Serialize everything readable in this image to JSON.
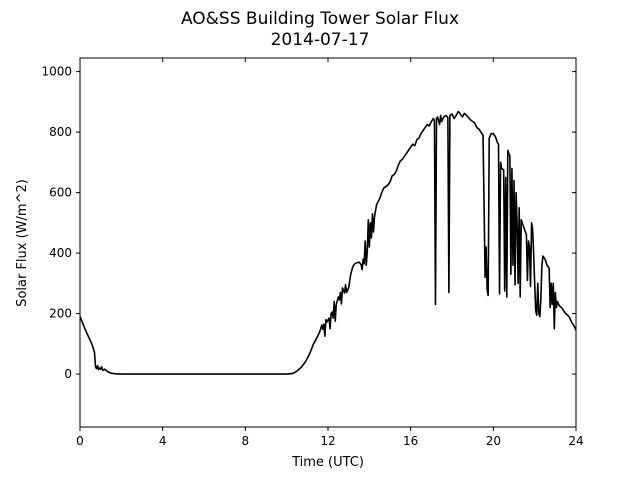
{
  "chart_data": {
    "type": "line",
    "title": "AO&SS Building Tower Solar Flux",
    "subtitle": "2014-07-17",
    "xlabel": "Time (UTC)",
    "ylabel": "Solar Flux (W/m^2)",
    "xlim": [
      0,
      24
    ],
    "ylim": [
      -175,
      1045
    ],
    "xticks": [
      0,
      4,
      8,
      12,
      16,
      20,
      24
    ],
    "yticks": [
      0,
      200,
      400,
      600,
      800,
      1000
    ],
    "grid": false,
    "legend": "none",
    "line_color": "#000000",
    "series": [
      {
        "points": [
          [
            0.0,
            190
          ],
          [
            0.15,
            165
          ],
          [
            0.3,
            140
          ],
          [
            0.45,
            118
          ],
          [
            0.6,
            95
          ],
          [
            0.7,
            72
          ],
          [
            0.75,
            25
          ],
          [
            0.8,
            18
          ],
          [
            0.85,
            28
          ],
          [
            0.9,
            15
          ],
          [
            0.95,
            20
          ],
          [
            1.0,
            16
          ],
          [
            1.05,
            24
          ],
          [
            1.1,
            12
          ],
          [
            1.2,
            16
          ],
          [
            1.3,
            10
          ],
          [
            1.4,
            6
          ],
          [
            1.5,
            3
          ],
          [
            1.7,
            1
          ],
          [
            2.0,
            0
          ],
          [
            3.0,
            0
          ],
          [
            4.0,
            0
          ],
          [
            6.0,
            0
          ],
          [
            8.0,
            0
          ],
          [
            10.0,
            0
          ],
          [
            10.3,
            2
          ],
          [
            10.5,
            10
          ],
          [
            10.7,
            22
          ],
          [
            10.9,
            40
          ],
          [
            11.1,
            65
          ],
          [
            11.3,
            100
          ],
          [
            11.5,
            125
          ],
          [
            11.6,
            140
          ],
          [
            11.7,
            162
          ],
          [
            11.75,
            148
          ],
          [
            11.8,
            165
          ],
          [
            11.85,
            125
          ],
          [
            11.9,
            180
          ],
          [
            11.95,
            172
          ],
          [
            12.05,
            185
          ],
          [
            12.1,
            150
          ],
          [
            12.15,
            200
          ],
          [
            12.2,
            205
          ],
          [
            12.25,
            185
          ],
          [
            12.3,
            240
          ],
          [
            12.35,
            175
          ],
          [
            12.4,
            230
          ],
          [
            12.5,
            255
          ],
          [
            12.55,
            245
          ],
          [
            12.6,
            270
          ],
          [
            12.65,
            232
          ],
          [
            12.7,
            285
          ],
          [
            12.8,
            268
          ],
          [
            12.85,
            295
          ],
          [
            12.9,
            270
          ],
          [
            13.0,
            285
          ],
          [
            13.1,
            330
          ],
          [
            13.2,
            355
          ],
          [
            13.3,
            365
          ],
          [
            13.4,
            368
          ],
          [
            13.5,
            370
          ],
          [
            13.6,
            362
          ],
          [
            13.65,
            345
          ],
          [
            13.7,
            380
          ],
          [
            13.75,
            365
          ],
          [
            13.8,
            440
          ],
          [
            13.85,
            360
          ],
          [
            13.9,
            405
          ],
          [
            13.95,
            510
          ],
          [
            14.0,
            420
          ],
          [
            14.05,
            500
          ],
          [
            14.1,
            450
          ],
          [
            14.15,
            530
          ],
          [
            14.2,
            470
          ],
          [
            14.25,
            520
          ],
          [
            14.35,
            560
          ],
          [
            14.5,
            580
          ],
          [
            14.6,
            600
          ],
          [
            14.7,
            615
          ],
          [
            14.8,
            620
          ],
          [
            14.9,
            625
          ],
          [
            15.0,
            635
          ],
          [
            15.1,
            655
          ],
          [
            15.2,
            660
          ],
          [
            15.3,
            670
          ],
          [
            15.4,
            690
          ],
          [
            15.5,
            705
          ],
          [
            15.6,
            710
          ],
          [
            15.7,
            720
          ],
          [
            15.8,
            730
          ],
          [
            15.9,
            740
          ],
          [
            16.0,
            750
          ],
          [
            16.1,
            760
          ],
          [
            16.2,
            755
          ],
          [
            16.3,
            775
          ],
          [
            16.4,
            780
          ],
          [
            16.5,
            795
          ],
          [
            16.6,
            805
          ],
          [
            16.7,
            815
          ],
          [
            16.8,
            825
          ],
          [
            16.9,
            820
          ],
          [
            17.0,
            835
          ],
          [
            17.1,
            845
          ],
          [
            17.15,
            838
          ],
          [
            17.2,
            230
          ],
          [
            17.25,
            845
          ],
          [
            17.3,
            850
          ],
          [
            17.4,
            825
          ],
          [
            17.45,
            855
          ],
          [
            17.5,
            835
          ],
          [
            17.6,
            850
          ],
          [
            17.7,
            855
          ],
          [
            17.8,
            848
          ],
          [
            17.85,
            270
          ],
          [
            17.9,
            855
          ],
          [
            18.0,
            860
          ],
          [
            18.1,
            845
          ],
          [
            18.2,
            855
          ],
          [
            18.3,
            868
          ],
          [
            18.4,
            860
          ],
          [
            18.5,
            850
          ],
          [
            18.6,
            862
          ],
          [
            18.7,
            855
          ],
          [
            18.8,
            848
          ],
          [
            18.9,
            840
          ],
          [
            19.0,
            835
          ],
          [
            19.1,
            830
          ],
          [
            19.2,
            815
          ],
          [
            19.3,
            810
          ],
          [
            19.4,
            800
          ],
          [
            19.5,
            790
          ],
          [
            19.55,
            570
          ],
          [
            19.6,
            320
          ],
          [
            19.65,
            420
          ],
          [
            19.7,
            280
          ],
          [
            19.75,
            260
          ],
          [
            19.8,
            780
          ],
          [
            19.9,
            795
          ],
          [
            20.0,
            795
          ],
          [
            20.1,
            785
          ],
          [
            20.2,
            765
          ],
          [
            20.25,
            760
          ],
          [
            20.3,
            265
          ],
          [
            20.35,
            700
          ],
          [
            20.4,
            680
          ],
          [
            20.5,
            675
          ],
          [
            20.55,
            275
          ],
          [
            20.6,
            650
          ],
          [
            20.65,
            255
          ],
          [
            20.7,
            740
          ],
          [
            20.8,
            720
          ],
          [
            20.85,
            330
          ],
          [
            20.9,
            680
          ],
          [
            20.95,
            360
          ],
          [
            21.0,
            640
          ],
          [
            21.05,
            295
          ],
          [
            21.1,
            600
          ],
          [
            21.15,
            500
          ],
          [
            21.2,
            300
          ],
          [
            21.25,
            550
          ],
          [
            21.3,
            255
          ],
          [
            21.35,
            510
          ],
          [
            21.4,
            500
          ],
          [
            21.5,
            480
          ],
          [
            21.6,
            460
          ],
          [
            21.65,
            310
          ],
          [
            21.7,
            440
          ],
          [
            21.75,
            420
          ],
          [
            21.8,
            290
          ],
          [
            21.85,
            500
          ],
          [
            21.9,
            480
          ],
          [
            21.95,
            400
          ],
          [
            22.0,
            300
          ],
          [
            22.05,
            210
          ],
          [
            22.1,
            195
          ],
          [
            22.15,
            300
          ],
          [
            22.2,
            200
          ],
          [
            22.25,
            190
          ],
          [
            22.3,
            250
          ],
          [
            22.35,
            360
          ],
          [
            22.4,
            390
          ],
          [
            22.5,
            380
          ],
          [
            22.6,
            360
          ],
          [
            22.7,
            350
          ],
          [
            22.75,
            220
          ],
          [
            22.8,
            300
          ],
          [
            22.85,
            230
          ],
          [
            22.9,
            300
          ],
          [
            22.95,
            150
          ],
          [
            23.0,
            270
          ],
          [
            23.05,
            220
          ],
          [
            23.1,
            240
          ],
          [
            23.2,
            225
          ],
          [
            23.3,
            220
          ],
          [
            23.4,
            210
          ],
          [
            23.5,
            200
          ],
          [
            23.6,
            195
          ],
          [
            23.7,
            185
          ],
          [
            23.8,
            170
          ],
          [
            23.9,
            160
          ],
          [
            24.0,
            145
          ]
        ]
      }
    ]
  }
}
